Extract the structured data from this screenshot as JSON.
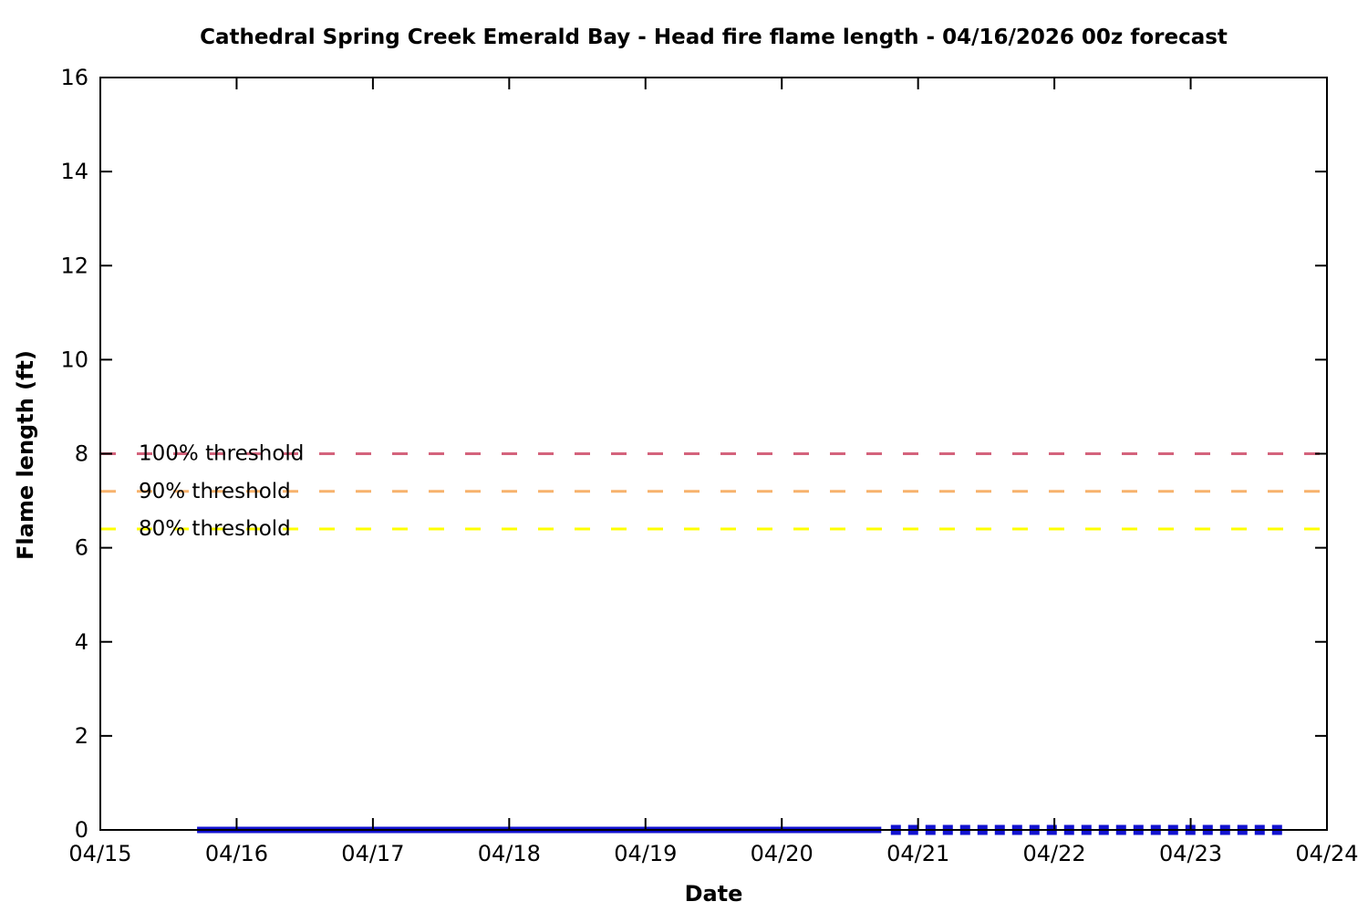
{
  "chart_data": {
    "type": "line",
    "title": "Cathedral Spring Creek Emerald Bay - Head fire flame length - 04/16/2026 00z forecast",
    "xlabel": "Date",
    "ylabel": "Flame length (ft)",
    "x_tick_labels": [
      "04/15",
      "04/16",
      "04/17",
      "04/18",
      "04/19",
      "04/20",
      "04/21",
      "04/22",
      "04/23",
      "04/24"
    ],
    "y_ticks": [
      0,
      2,
      4,
      6,
      8,
      10,
      12,
      14,
      16
    ],
    "ylim": [
      0,
      16
    ],
    "grid": "off",
    "legend": "none",
    "frame": "full-box-with-mirrored-ticks",
    "thresholds": [
      {
        "name": "threshold-100",
        "label": "100% threshold",
        "value": 8,
        "color": "#d4637c",
        "style": "dashed"
      },
      {
        "name": "threshold-90",
        "label": "90% threshold",
        "value": 7.2,
        "color": "#f7b26c",
        "style": "dashed"
      },
      {
        "name": "threshold-80",
        "label": "80% threshold",
        "value": 6.4,
        "color": "#ffff00",
        "style": "dashed"
      }
    ],
    "series": [
      {
        "name": "head-fire-flame-length-forecast",
        "style": "solid",
        "color": "#1212d0",
        "x_days": [
          0.71,
          5.73
        ],
        "values": [
          0,
          0
        ]
      },
      {
        "name": "head-fire-flame-length-extended",
        "style": "dotted",
        "color": "#1212d0",
        "x_days": [
          5.8,
          8.72
        ],
        "values": [
          0,
          0
        ]
      }
    ]
  }
}
